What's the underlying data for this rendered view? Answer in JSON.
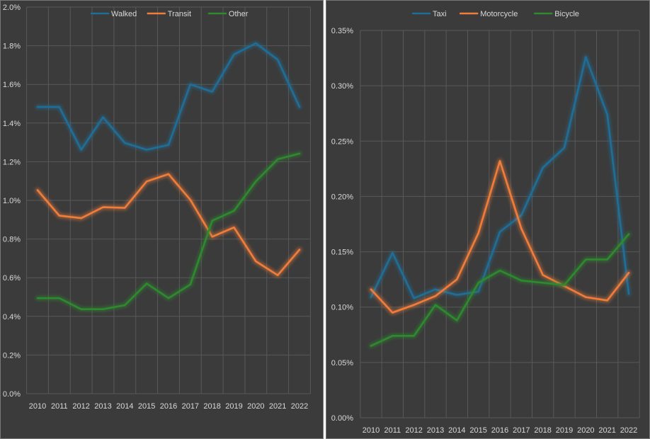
{
  "chart_data": [
    {
      "type": "line",
      "title": "",
      "xlabel": "",
      "ylabel": "",
      "x": [
        "2010",
        "2011",
        "2012",
        "2013",
        "2014",
        "2015",
        "2016",
        "2017",
        "2018",
        "2019",
        "2020",
        "2021",
        "2022"
      ],
      "ylim": [
        0,
        0.02
      ],
      "yticks": [
        0,
        0.002,
        0.004,
        0.006,
        0.008,
        0.01,
        0.012,
        0.014,
        0.016,
        0.018,
        0.02
      ],
      "ytick_labels": [
        "0.0%",
        "0.2%",
        "0.4%",
        "0.6%",
        "0.8%",
        "1.0%",
        "1.2%",
        "1.4%",
        "1.6%",
        "1.8%",
        "2.0%"
      ],
      "grid": true,
      "legend_position": "top-center",
      "series": [
        {
          "name": "Walked",
          "color": "#1f6e97",
          "values": [
            0.01483,
            0.01483,
            0.01262,
            0.0143,
            0.01297,
            0.01262,
            0.01287,
            0.016,
            0.01562,
            0.01755,
            0.01813,
            0.01728,
            0.01483
          ]
        },
        {
          "name": "Transit",
          "color": "#f07d3a",
          "values": [
            0.01053,
            0.00921,
            0.00908,
            0.00965,
            0.00961,
            0.01098,
            0.01136,
            0.01003,
            0.00812,
            0.0086,
            0.00685,
            0.00613,
            0.00745
          ]
        },
        {
          "name": "Other",
          "color": "#2e8a2e",
          "values": [
            0.00494,
            0.00494,
            0.00437,
            0.00437,
            0.00458,
            0.0057,
            0.00494,
            0.00565,
            0.00895,
            0.00946,
            0.01098,
            0.01213,
            0.01242
          ]
        }
      ]
    },
    {
      "type": "line",
      "title": "",
      "xlabel": "",
      "ylabel": "",
      "x": [
        "2010",
        "2011",
        "2012",
        "2013",
        "2014",
        "2015",
        "2016",
        "2017",
        "2018",
        "2019",
        "2020",
        "2021",
        "2022"
      ],
      "ylim": [
        0,
        0.0035
      ],
      "yticks": [
        0,
        0.0005,
        0.001,
        0.0015,
        0.002,
        0.0025,
        0.003,
        0.0035
      ],
      "ytick_labels": [
        "0.00%",
        "0.05%",
        "0.10%",
        "0.15%",
        "0.20%",
        "0.25%",
        "0.30%",
        "0.35%"
      ],
      "grid": true,
      "legend_position": "top-center",
      "series": [
        {
          "name": "Taxi",
          "color": "#1f6e97",
          "values": [
            0.00109,
            0.00149,
            0.00108,
            0.00116,
            0.00111,
            0.00114,
            0.00168,
            0.00183,
            0.00226,
            0.00244,
            0.00326,
            0.00274,
            0.00112
          ]
        },
        {
          "name": "Motorcycle",
          "color": "#f07d3a",
          "values": [
            0.00116,
            0.00095,
            0.00102,
            0.0011,
            0.00125,
            0.00167,
            0.00232,
            0.00171,
            0.00129,
            0.00119,
            0.00109,
            0.00106,
            0.00131
          ]
        },
        {
          "name": "Bicycle",
          "color": "#2e8a2e",
          "values": [
            0.00065,
            0.00074,
            0.00074,
            0.00102,
            0.00088,
            0.00122,
            0.00133,
            0.00124,
            0.00122,
            0.0012,
            0.00143,
            0.00143,
            0.00166
          ]
        }
      ]
    }
  ]
}
